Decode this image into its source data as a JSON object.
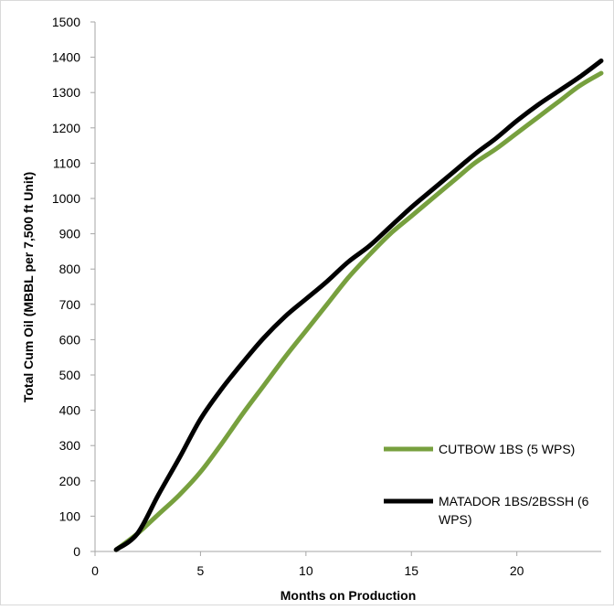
{
  "chart_data": {
    "type": "line",
    "xlabel": "Months on Production",
    "ylabel": "Total Cum Oil (MBBL per 7,500 ft Unit)",
    "xlim": [
      0,
      24
    ],
    "ylim": [
      0,
      1500
    ],
    "x_ticks": [
      0,
      5,
      10,
      15,
      20
    ],
    "y_ticks": [
      0,
      100,
      200,
      300,
      400,
      500,
      600,
      700,
      800,
      900,
      1000,
      1100,
      1200,
      1300,
      1400,
      1500
    ],
    "grid": false,
    "legend_position": "bottom-right",
    "series": [
      {
        "name": "CUTBOW 1BS (5 WPS)",
        "color": "#77A03E",
        "x": [
          1,
          2,
          3,
          4,
          5,
          6,
          7,
          8,
          9,
          10,
          11,
          12,
          13,
          14,
          15,
          16,
          17,
          18,
          19,
          20,
          21,
          22,
          23,
          24
        ],
        "y": [
          5,
          50,
          105,
          160,
          225,
          305,
          390,
          470,
          550,
          625,
          700,
          775,
          840,
          900,
          950,
          1000,
          1050,
          1100,
          1140,
          1185,
          1230,
          1275,
          1320,
          1355
        ]
      },
      {
        "name": "MATADOR 1BS/2BSSH (6 WPS)",
        "color": "#000000",
        "x": [
          1,
          2,
          3,
          4,
          5,
          6,
          7,
          8,
          9,
          10,
          11,
          12,
          13,
          14,
          15,
          16,
          17,
          18,
          19,
          20,
          21,
          22,
          23,
          24
        ],
        "y": [
          5,
          50,
          160,
          265,
          375,
          460,
          535,
          605,
          665,
          715,
          765,
          820,
          865,
          920,
          975,
          1025,
          1075,
          1125,
          1170,
          1220,
          1265,
          1305,
          1345,
          1390
        ]
      }
    ]
  }
}
